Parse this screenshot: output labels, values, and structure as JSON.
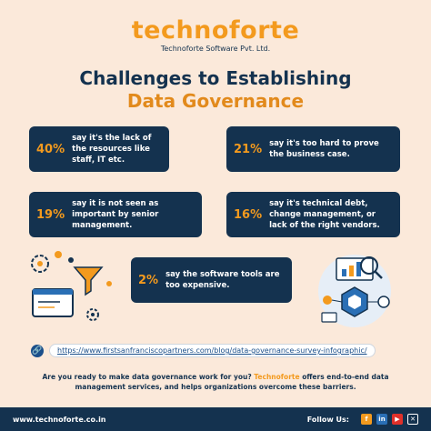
{
  "brand": {
    "name": "technoforte",
    "tagline": "Technoforte Software Pvt. Ltd."
  },
  "title": {
    "line1": "Challenges to Establishing",
    "line2": "Data Governance"
  },
  "stats": [
    {
      "percent": "40%",
      "text": "say it's the lack of the resources like staff, IT etc."
    },
    {
      "percent": "21%",
      "text": "say it's too hard to prove the business case."
    },
    {
      "percent": "19%",
      "text": "say it is not seen as important by senior management."
    },
    {
      "percent": "16%",
      "text": "say it's technical debt, change management, or lack of the right vendors."
    },
    {
      "percent": "2%",
      "text": "say the software tools are too expensive."
    }
  ],
  "source_link": "https://www.firstsanfranciscopartners.com/blog/data-governance-survey-infographic/",
  "cta": {
    "before": "Are you ready to make data governance work for you?",
    "brand": "Technoforte",
    "after": "offers end-to-end data management services, and helps organizations overcome these barriers."
  },
  "footer": {
    "website": "www.technoforte.co.in",
    "follow_label": "Follow Us:"
  },
  "colors": {
    "background": "#fbe9da",
    "navy": "#14324f",
    "orange": "#f39a1e"
  },
  "icons": [
    "link-icon",
    "facebook-icon",
    "linkedin-icon",
    "youtube-icon",
    "x-icon"
  ]
}
